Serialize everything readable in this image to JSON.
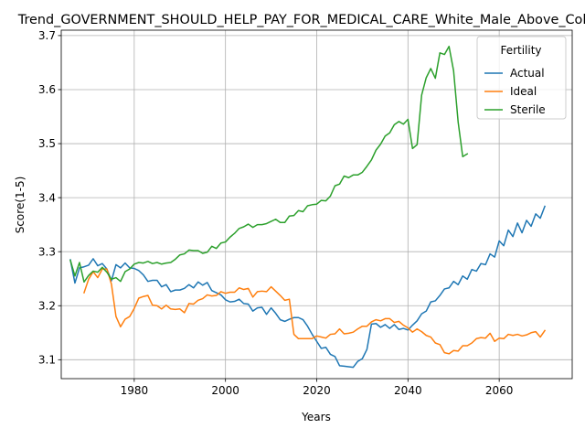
{
  "chart_data": {
    "type": "line",
    "title": "Trend_GOVERNMENT_SHOULD_HELP_PAY_FOR_MEDICAL_CARE_White_Male_Above_College",
    "xlabel": "Years",
    "ylabel": "Score(1-5)",
    "xlim": [
      1964,
      2076
    ],
    "ylim": [
      3.065,
      3.71
    ],
    "xticks": [
      1980,
      2000,
      2020,
      2040,
      2060
    ],
    "yticks": [
      3.1,
      3.2,
      3.3,
      3.4,
      3.5,
      3.6,
      3.7
    ],
    "grid": true,
    "legend": {
      "title": "Fertility",
      "placement": "top-right"
    },
    "series": [
      {
        "name": "Actual",
        "color": "#1f77b4",
        "points": [
          [
            1966,
            3.285
          ],
          [
            1967,
            3.242
          ],
          [
            1968,
            3.27
          ],
          [
            1969,
            3.272
          ],
          [
            1970,
            3.275
          ],
          [
            1971,
            3.287
          ],
          [
            1972,
            3.274
          ],
          [
            1973,
            3.278
          ],
          [
            1974,
            3.268
          ],
          [
            1975,
            3.246
          ],
          [
            1976,
            3.276
          ],
          [
            1977,
            3.27
          ],
          [
            1978,
            3.279
          ],
          [
            1979,
            3.27
          ],
          [
            1980,
            3.269
          ],
          [
            1981,
            3.265
          ],
          [
            1982,
            3.257
          ],
          [
            1983,
            3.245
          ],
          [
            1984,
            3.247
          ],
          [
            1985,
            3.247
          ],
          [
            1986,
            3.235
          ],
          [
            1987,
            3.239
          ],
          [
            1988,
            3.226
          ],
          [
            1989,
            3.229
          ],
          [
            1990,
            3.229
          ],
          [
            1991,
            3.232
          ],
          [
            1992,
            3.239
          ],
          [
            1993,
            3.233
          ],
          [
            1994,
            3.244
          ],
          [
            1995,
            3.238
          ],
          [
            1996,
            3.243
          ],
          [
            1997,
            3.228
          ],
          [
            1998,
            3.224
          ],
          [
            1999,
            3.22
          ],
          [
            2000,
            3.211
          ],
          [
            2001,
            3.207
          ],
          [
            2002,
            3.208
          ],
          [
            2003,
            3.212
          ],
          [
            2004,
            3.204
          ],
          [
            2005,
            3.203
          ],
          [
            2006,
            3.19
          ],
          [
            2007,
            3.196
          ],
          [
            2008,
            3.197
          ],
          [
            2009,
            3.184
          ],
          [
            2010,
            3.196
          ],
          [
            2011,
            3.186
          ],
          [
            2012,
            3.174
          ],
          [
            2013,
            3.171
          ],
          [
            2014,
            3.175
          ],
          [
            2015,
            3.178
          ],
          [
            2016,
            3.178
          ],
          [
            2017,
            3.174
          ],
          [
            2018,
            3.162
          ],
          [
            2019,
            3.147
          ],
          [
            2020,
            3.134
          ],
          [
            2021,
            3.121
          ],
          [
            2022,
            3.123
          ],
          [
            2023,
            3.11
          ],
          [
            2024,
            3.106
          ],
          [
            2025,
            3.089
          ],
          [
            2026,
            3.088
          ],
          [
            2027,
            3.087
          ],
          [
            2028,
            3.086
          ],
          [
            2029,
            3.097
          ],
          [
            2030,
            3.102
          ],
          [
            2031,
            3.119
          ],
          [
            2032,
            3.166
          ],
          [
            2033,
            3.167
          ],
          [
            2034,
            3.16
          ],
          [
            2035,
            3.165
          ],
          [
            2036,
            3.158
          ],
          [
            2037,
            3.165
          ],
          [
            2038,
            3.156
          ],
          [
            2039,
            3.158
          ],
          [
            2040,
            3.155
          ],
          [
            2041,
            3.164
          ],
          [
            2042,
            3.172
          ],
          [
            2043,
            3.185
          ],
          [
            2044,
            3.19
          ],
          [
            2045,
            3.207
          ],
          [
            2046,
            3.209
          ],
          [
            2047,
            3.219
          ],
          [
            2048,
            3.231
          ],
          [
            2049,
            3.233
          ],
          [
            2050,
            3.245
          ],
          [
            2051,
            3.239
          ],
          [
            2052,
            3.255
          ],
          [
            2053,
            3.249
          ],
          [
            2054,
            3.267
          ],
          [
            2055,
            3.264
          ],
          [
            2056,
            3.278
          ],
          [
            2057,
            3.276
          ],
          [
            2058,
            3.296
          ],
          [
            2059,
            3.29
          ],
          [
            2060,
            3.32
          ],
          [
            2061,
            3.311
          ],
          [
            2062,
            3.34
          ],
          [
            2063,
            3.328
          ],
          [
            2064,
            3.353
          ],
          [
            2065,
            3.335
          ],
          [
            2066,
            3.358
          ],
          [
            2067,
            3.347
          ],
          [
            2068,
            3.37
          ],
          [
            2069,
            3.362
          ],
          [
            2070,
            3.384
          ]
        ]
      },
      {
        "name": "Ideal",
        "color": "#ff7f0e",
        "points": [
          [
            1969,
            3.224
          ],
          [
            1970,
            3.249
          ],
          [
            1971,
            3.263
          ],
          [
            1972,
            3.252
          ],
          [
            1973,
            3.268
          ],
          [
            1974,
            3.268
          ],
          [
            1975,
            3.24
          ],
          [
            1976,
            3.18
          ],
          [
            1977,
            3.161
          ],
          [
            1978,
            3.175
          ],
          [
            1979,
            3.18
          ],
          [
            1980,
            3.195
          ],
          [
            1981,
            3.214
          ],
          [
            1982,
            3.217
          ],
          [
            1983,
            3.219
          ],
          [
            1984,
            3.201
          ],
          [
            1985,
            3.2
          ],
          [
            1986,
            3.194
          ],
          [
            1987,
            3.201
          ],
          [
            1988,
            3.194
          ],
          [
            1989,
            3.193
          ],
          [
            1990,
            3.194
          ],
          [
            1991,
            3.187
          ],
          [
            1992,
            3.204
          ],
          [
            1993,
            3.203
          ],
          [
            1994,
            3.21
          ],
          [
            1995,
            3.213
          ],
          [
            1996,
            3.22
          ],
          [
            1997,
            3.218
          ],
          [
            1998,
            3.219
          ],
          [
            1999,
            3.226
          ],
          [
            2000,
            3.223
          ],
          [
            2001,
            3.225
          ],
          [
            2002,
            3.225
          ],
          [
            2003,
            3.233
          ],
          [
            2004,
            3.23
          ],
          [
            2005,
            3.232
          ],
          [
            2006,
            3.216
          ],
          [
            2007,
            3.226
          ],
          [
            2008,
            3.227
          ],
          [
            2009,
            3.226
          ],
          [
            2010,
            3.235
          ],
          [
            2011,
            3.227
          ],
          [
            2012,
            3.219
          ],
          [
            2013,
            3.21
          ],
          [
            2014,
            3.212
          ],
          [
            2015,
            3.147
          ],
          [
            2016,
            3.139
          ],
          [
            2017,
            3.139
          ],
          [
            2018,
            3.139
          ],
          [
            2019,
            3.139
          ],
          [
            2020,
            3.144
          ],
          [
            2021,
            3.142
          ],
          [
            2022,
            3.14
          ],
          [
            2023,
            3.147
          ],
          [
            2024,
            3.148
          ],
          [
            2025,
            3.157
          ],
          [
            2026,
            3.148
          ],
          [
            2027,
            3.149
          ],
          [
            2028,
            3.151
          ],
          [
            2029,
            3.157
          ],
          [
            2030,
            3.162
          ],
          [
            2031,
            3.162
          ],
          [
            2032,
            3.17
          ],
          [
            2033,
            3.174
          ],
          [
            2034,
            3.172
          ],
          [
            2035,
            3.176
          ],
          [
            2036,
            3.176
          ],
          [
            2037,
            3.169
          ],
          [
            2038,
            3.171
          ],
          [
            2039,
            3.164
          ],
          [
            2040,
            3.159
          ],
          [
            2041,
            3.151
          ],
          [
            2042,
            3.157
          ],
          [
            2043,
            3.152
          ],
          [
            2044,
            3.145
          ],
          [
            2045,
            3.142
          ],
          [
            2046,
            3.131
          ],
          [
            2047,
            3.128
          ],
          [
            2048,
            3.113
          ],
          [
            2049,
            3.111
          ],
          [
            2050,
            3.117
          ],
          [
            2051,
            3.116
          ],
          [
            2052,
            3.126
          ],
          [
            2053,
            3.126
          ],
          [
            2054,
            3.131
          ],
          [
            2055,
            3.139
          ],
          [
            2056,
            3.141
          ],
          [
            2057,
            3.14
          ],
          [
            2058,
            3.149
          ],
          [
            2059,
            3.134
          ],
          [
            2060,
            3.14
          ],
          [
            2061,
            3.139
          ],
          [
            2062,
            3.147
          ],
          [
            2063,
            3.145
          ],
          [
            2064,
            3.147
          ],
          [
            2065,
            3.144
          ],
          [
            2066,
            3.146
          ],
          [
            2067,
            3.15
          ],
          [
            2068,
            3.152
          ],
          [
            2069,
            3.142
          ],
          [
            2070,
            3.154
          ]
        ]
      },
      {
        "name": "Sterile",
        "color": "#2ca02c",
        "points": [
          [
            1966,
            3.284
          ],
          [
            1967,
            3.255
          ],
          [
            1968,
            3.28
          ],
          [
            1969,
            3.244
          ],
          [
            1970,
            3.256
          ],
          [
            1971,
            3.264
          ],
          [
            1972,
            3.262
          ],
          [
            1973,
            3.271
          ],
          [
            1974,
            3.262
          ],
          [
            1975,
            3.249
          ],
          [
            1976,
            3.252
          ],
          [
            1977,
            3.245
          ],
          [
            1978,
            3.263
          ],
          [
            1979,
            3.268
          ],
          [
            1980,
            3.277
          ],
          [
            1981,
            3.28
          ],
          [
            1982,
            3.279
          ],
          [
            1983,
            3.282
          ],
          [
            1984,
            3.278
          ],
          [
            1985,
            3.28
          ],
          [
            1986,
            3.277
          ],
          [
            1987,
            3.279
          ],
          [
            1988,
            3.28
          ],
          [
            1989,
            3.286
          ],
          [
            1990,
            3.294
          ],
          [
            1991,
            3.296
          ],
          [
            1992,
            3.303
          ],
          [
            1993,
            3.302
          ],
          [
            1994,
            3.302
          ],
          [
            1995,
            3.297
          ],
          [
            1996,
            3.299
          ],
          [
            1997,
            3.31
          ],
          [
            1998,
            3.306
          ],
          [
            1999,
            3.316
          ],
          [
            2000,
            3.318
          ],
          [
            2001,
            3.327
          ],
          [
            2002,
            3.334
          ],
          [
            2003,
            3.343
          ],
          [
            2004,
            3.346
          ],
          [
            2005,
            3.351
          ],
          [
            2006,
            3.345
          ],
          [
            2007,
            3.35
          ],
          [
            2008,
            3.35
          ],
          [
            2009,
            3.352
          ],
          [
            2010,
            3.356
          ],
          [
            2011,
            3.36
          ],
          [
            2012,
            3.354
          ],
          [
            2013,
            3.354
          ],
          [
            2014,
            3.366
          ],
          [
            2015,
            3.367
          ],
          [
            2016,
            3.376
          ],
          [
            2017,
            3.374
          ],
          [
            2018,
            3.385
          ],
          [
            2019,
            3.387
          ],
          [
            2020,
            3.388
          ],
          [
            2021,
            3.395
          ],
          [
            2022,
            3.394
          ],
          [
            2023,
            3.403
          ],
          [
            2024,
            3.422
          ],
          [
            2025,
            3.425
          ],
          [
            2026,
            3.44
          ],
          [
            2027,
            3.437
          ],
          [
            2028,
            3.442
          ],
          [
            2029,
            3.442
          ],
          [
            2030,
            3.447
          ],
          [
            2031,
            3.458
          ],
          [
            2032,
            3.47
          ],
          [
            2033,
            3.488
          ],
          [
            2034,
            3.499
          ],
          [
            2035,
            3.514
          ],
          [
            2036,
            3.52
          ],
          [
            2037,
            3.535
          ],
          [
            2038,
            3.541
          ],
          [
            2039,
            3.536
          ],
          [
            2040,
            3.545
          ],
          [
            2041,
            3.491
          ],
          [
            2042,
            3.498
          ],
          [
            2043,
            3.59
          ],
          [
            2044,
            3.622
          ],
          [
            2045,
            3.639
          ],
          [
            2046,
            3.621
          ],
          [
            2047,
            3.668
          ],
          [
            2048,
            3.665
          ],
          [
            2049,
            3.68
          ],
          [
            2050,
            3.635
          ],
          [
            2051,
            3.54
          ],
          [
            2052,
            3.476
          ],
          [
            2053,
            3.481
          ]
        ]
      }
    ]
  }
}
